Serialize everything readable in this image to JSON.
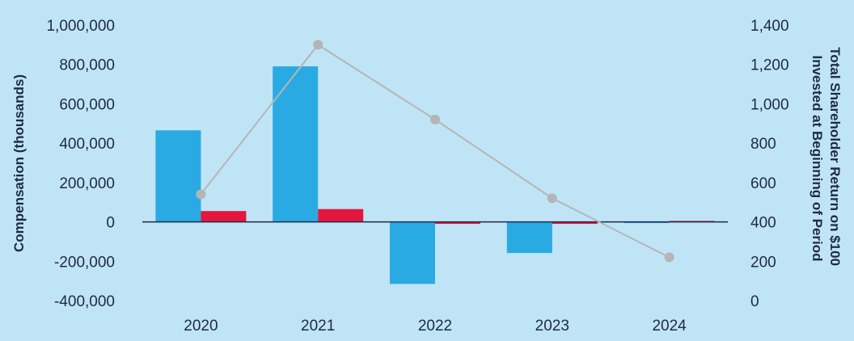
{
  "chart_data": {
    "type": "bar",
    "categories": [
      "2020",
      "2021",
      "2022",
      "2023",
      "2024"
    ],
    "series": [
      {
        "axis": "left",
        "kind": "bar",
        "color": "#2aaae2",
        "values": [
          465000,
          790000,
          -315000,
          -158000,
          -5000
        ]
      },
      {
        "axis": "left",
        "kind": "bar",
        "color": "#e3173e",
        "values": [
          55000,
          65000,
          -10000,
          -10000,
          5000
        ]
      },
      {
        "axis": "right",
        "kind": "line",
        "color": "#b5b5b5",
        "values": [
          540,
          1300,
          920,
          520,
          220
        ]
      }
    ],
    "ylabel": "Compensation (thousands)",
    "y2label_lines": [
      "Total Shareholder Return on $100",
      "Invested at Beginning of Period"
    ],
    "ylim": [
      -400000,
      1000000
    ],
    "y2lim": [
      0,
      1400
    ],
    "yticks": [
      "1,000,000",
      "800,000",
      "600,000",
      "400,000",
      "200,000",
      "0",
      "-200,000",
      "-400,000"
    ],
    "y2ticks": [
      "1,400",
      "1,200",
      "1,000",
      "800",
      "600",
      "400",
      "200",
      "0"
    ],
    "grid": false,
    "legend": "none",
    "zero_line_color": "#1f2a44"
  }
}
